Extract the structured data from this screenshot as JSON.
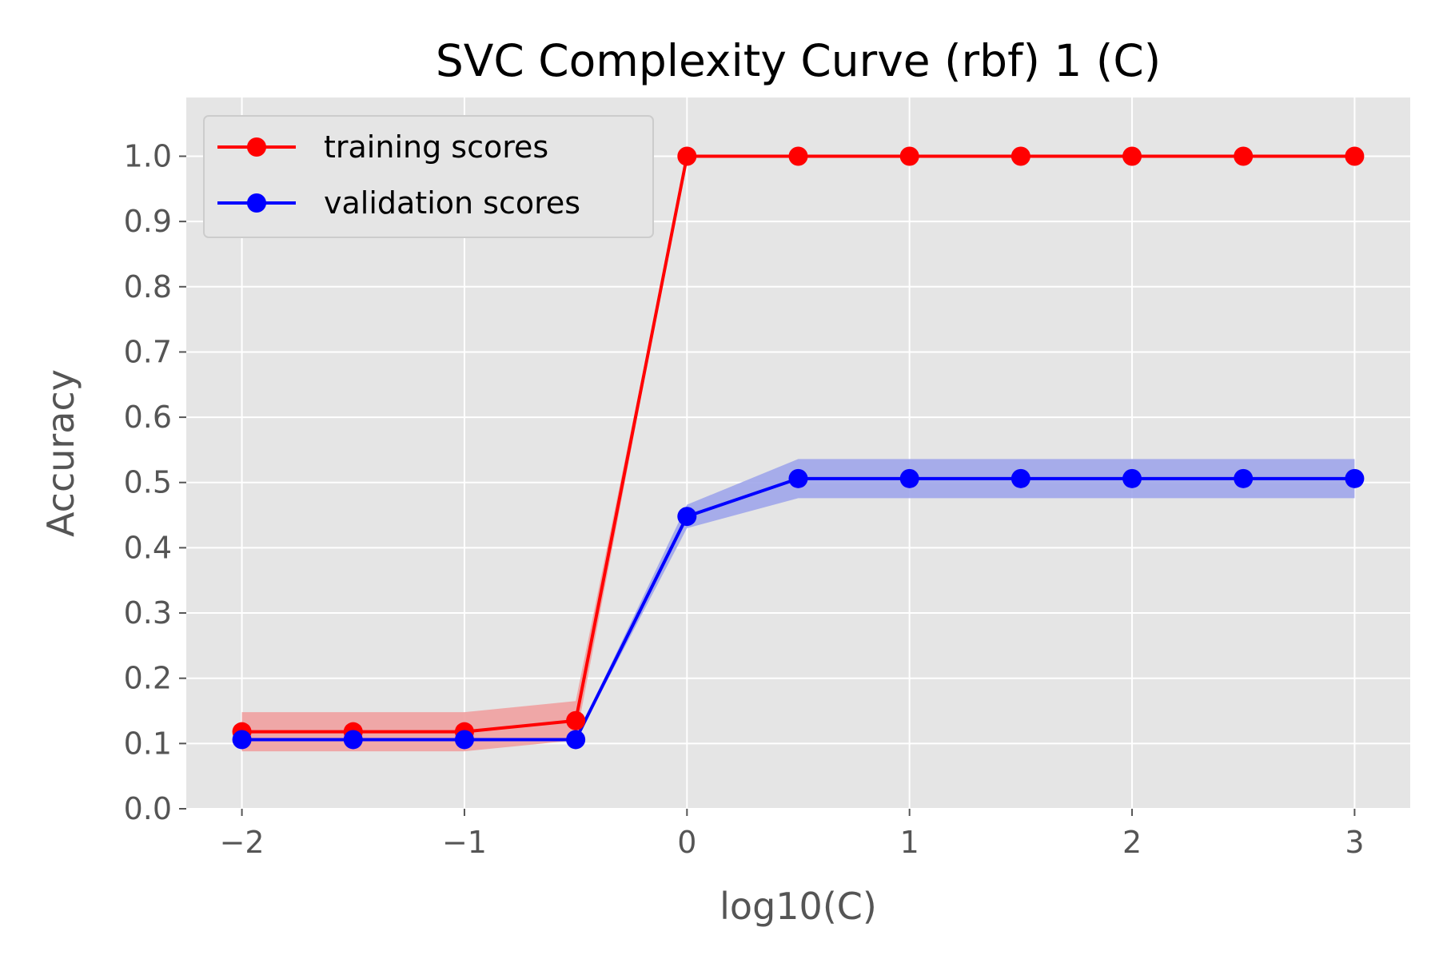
{
  "chart_data": {
    "type": "line",
    "title": "SVC Complexity Curve (rbf) 1 (C)",
    "xlabel": "log10(C)",
    "ylabel": "Accuracy",
    "xlim": [
      -2.25,
      3.25
    ],
    "ylim": [
      0.0,
      1.09
    ],
    "x_ticks": [
      -2,
      -1,
      0,
      1,
      2,
      3
    ],
    "x_tick_labels": [
      "−2",
      "−1",
      "0",
      "1",
      "2",
      "3"
    ],
    "y_ticks": [
      0.0,
      0.1,
      0.2,
      0.3,
      0.4,
      0.5,
      0.6,
      0.7,
      0.8,
      0.9,
      1.0
    ],
    "y_tick_labels": [
      "0.0",
      "0.1",
      "0.2",
      "0.3",
      "0.4",
      "0.5",
      "0.6",
      "0.7",
      "0.8",
      "0.9",
      "1.0"
    ],
    "grid": true,
    "legend_position": "top-left",
    "x": [
      -2.0,
      -1.5,
      -1.0,
      -0.5,
      0.0,
      0.5,
      1.0,
      1.5,
      2.0,
      2.5,
      3.0
    ],
    "series": [
      {
        "name": "training scores",
        "color": "#ff0000",
        "band_color": "#f0a0a0",
        "values": [
          0.118,
          0.118,
          0.118,
          0.135,
          1.0,
          1.0,
          1.0,
          1.0,
          1.0,
          1.0,
          1.0
        ],
        "band_lower": [
          0.088,
          0.088,
          0.088,
          0.105,
          1.0,
          1.0,
          1.0,
          1.0,
          1.0,
          1.0,
          1.0
        ],
        "band_upper": [
          0.148,
          0.148,
          0.148,
          0.165,
          1.0,
          1.0,
          1.0,
          1.0,
          1.0,
          1.0,
          1.0
        ]
      },
      {
        "name": "validation scores",
        "color": "#0000ff",
        "band_color": "#9ea5ea",
        "values": [
          0.106,
          0.106,
          0.106,
          0.106,
          0.448,
          0.506,
          0.506,
          0.506,
          0.506,
          0.506,
          0.506
        ],
        "band_lower": [
          0.104,
          0.104,
          0.104,
          0.104,
          0.43,
          0.476,
          0.476,
          0.476,
          0.476,
          0.476,
          0.476
        ],
        "band_upper": [
          0.108,
          0.108,
          0.108,
          0.108,
          0.466,
          0.536,
          0.536,
          0.536,
          0.536,
          0.536,
          0.536
        ]
      }
    ]
  }
}
